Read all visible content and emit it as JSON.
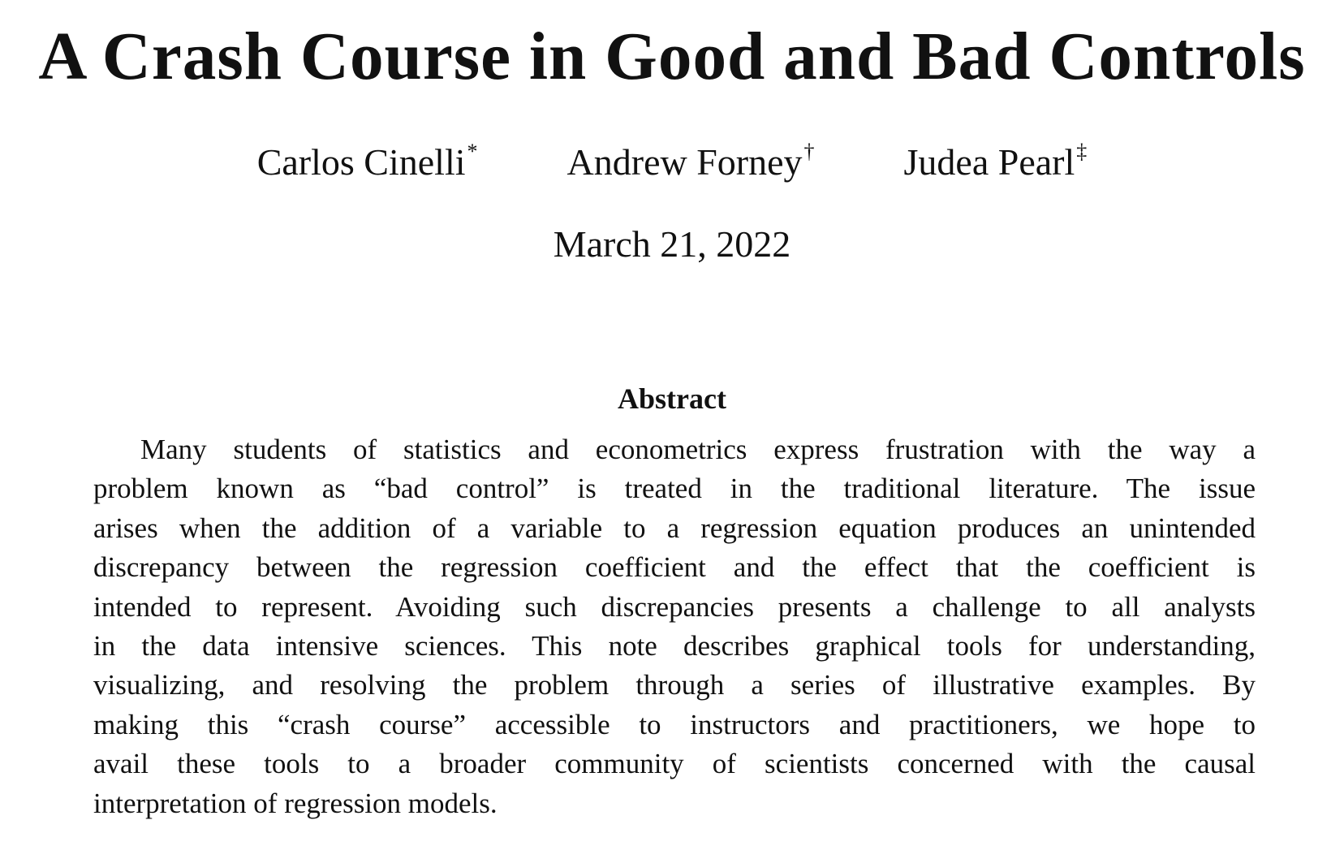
{
  "title": "A Crash Course in Good and Bad Controls",
  "authors": [
    {
      "name": "Carlos Cinelli",
      "mark": "*"
    },
    {
      "name": "Andrew Forney",
      "mark": "†"
    },
    {
      "name": "Judea Pearl",
      "mark": "‡"
    }
  ],
  "date": "March 21, 2022",
  "abstract": {
    "heading": "Abstract",
    "lines": [
      "Many students of statistics and econometrics express frustration with the way a",
      "problem known as “bad control” is treated in the traditional literature.  The issue",
      "arises when the addition of a variable to a regression equation produces an unintended",
      "discrepancy between the regression coefficient and the effect that the coefficient is",
      "intended to represent.  Avoiding such discrepancies presents a challenge to all analysts",
      "in the data intensive sciences. This note describes graphical tools for understanding,",
      "visualizing, and resolving the problem through a series of illustrative examples.  By",
      "making this “crash course” accessible to instructors and practitioners, we hope to",
      "avail these tools to a broader community of scientists concerned with the causal",
      "interpretation of regression models."
    ]
  }
}
